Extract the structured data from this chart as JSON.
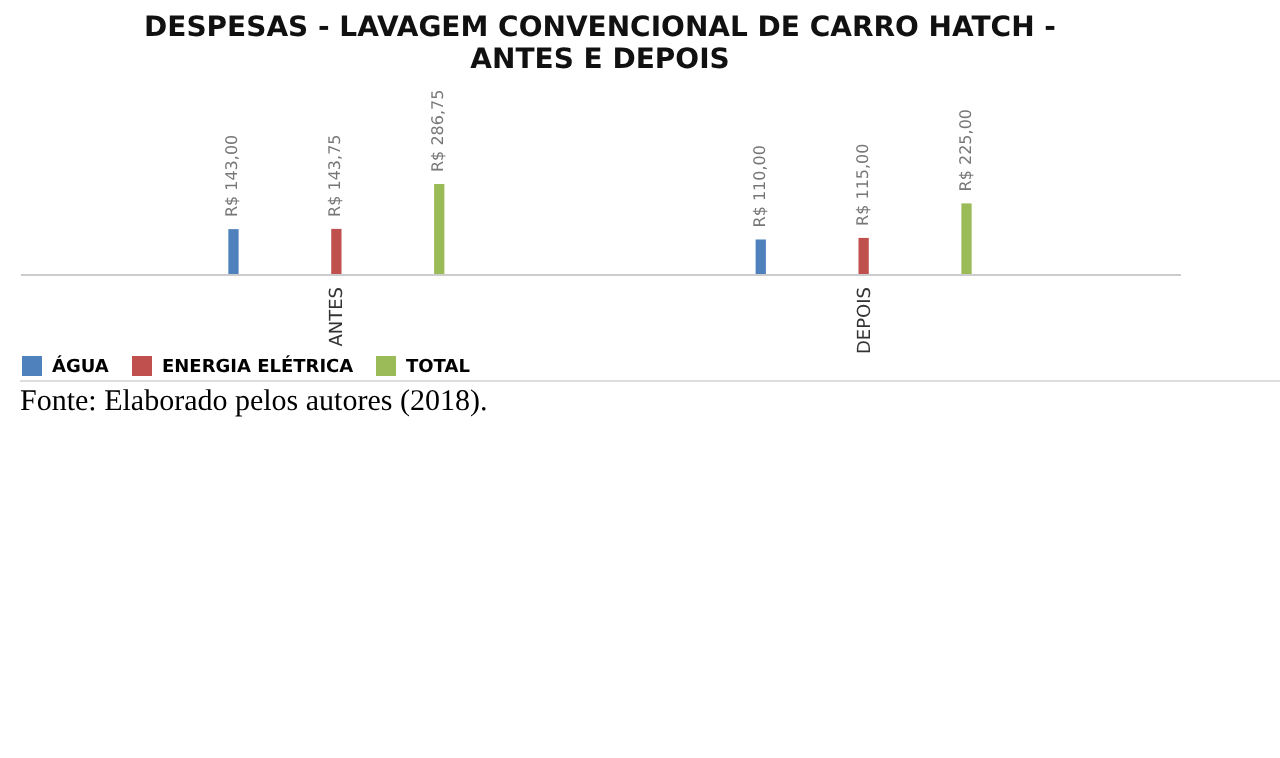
{
  "chart_data": {
    "type": "bar",
    "title": "DESPESAS - LAVAGEM CONVENCIONAL DE CARRO HATCH - ANTES E DEPOIS",
    "categories": [
      "ANTES",
      "DEPOIS"
    ],
    "series": [
      {
        "name": "ÁGUA",
        "color": "#4f81bd",
        "values": [
          143.0,
          110.0
        ],
        "value_labels": [
          "R$ 143,00",
          "R$ 110,00"
        ]
      },
      {
        "name": "ENERGIA ELÉTRICA",
        "color": "#c0504d",
        "values": [
          143.75,
          115.0
        ],
        "value_labels": [
          "R$ 143,75",
          "R$ 115,00"
        ]
      },
      {
        "name": "TOTAL",
        "color": "#9bbb59",
        "values": [
          286.75,
          225.0
        ],
        "value_labels": [
          "R$ 286,75",
          "R$ 225,00"
        ]
      }
    ],
    "legend": "bottom",
    "annotations": [
      "Fonte: Elaborado pelos autores (2018)."
    ]
  }
}
